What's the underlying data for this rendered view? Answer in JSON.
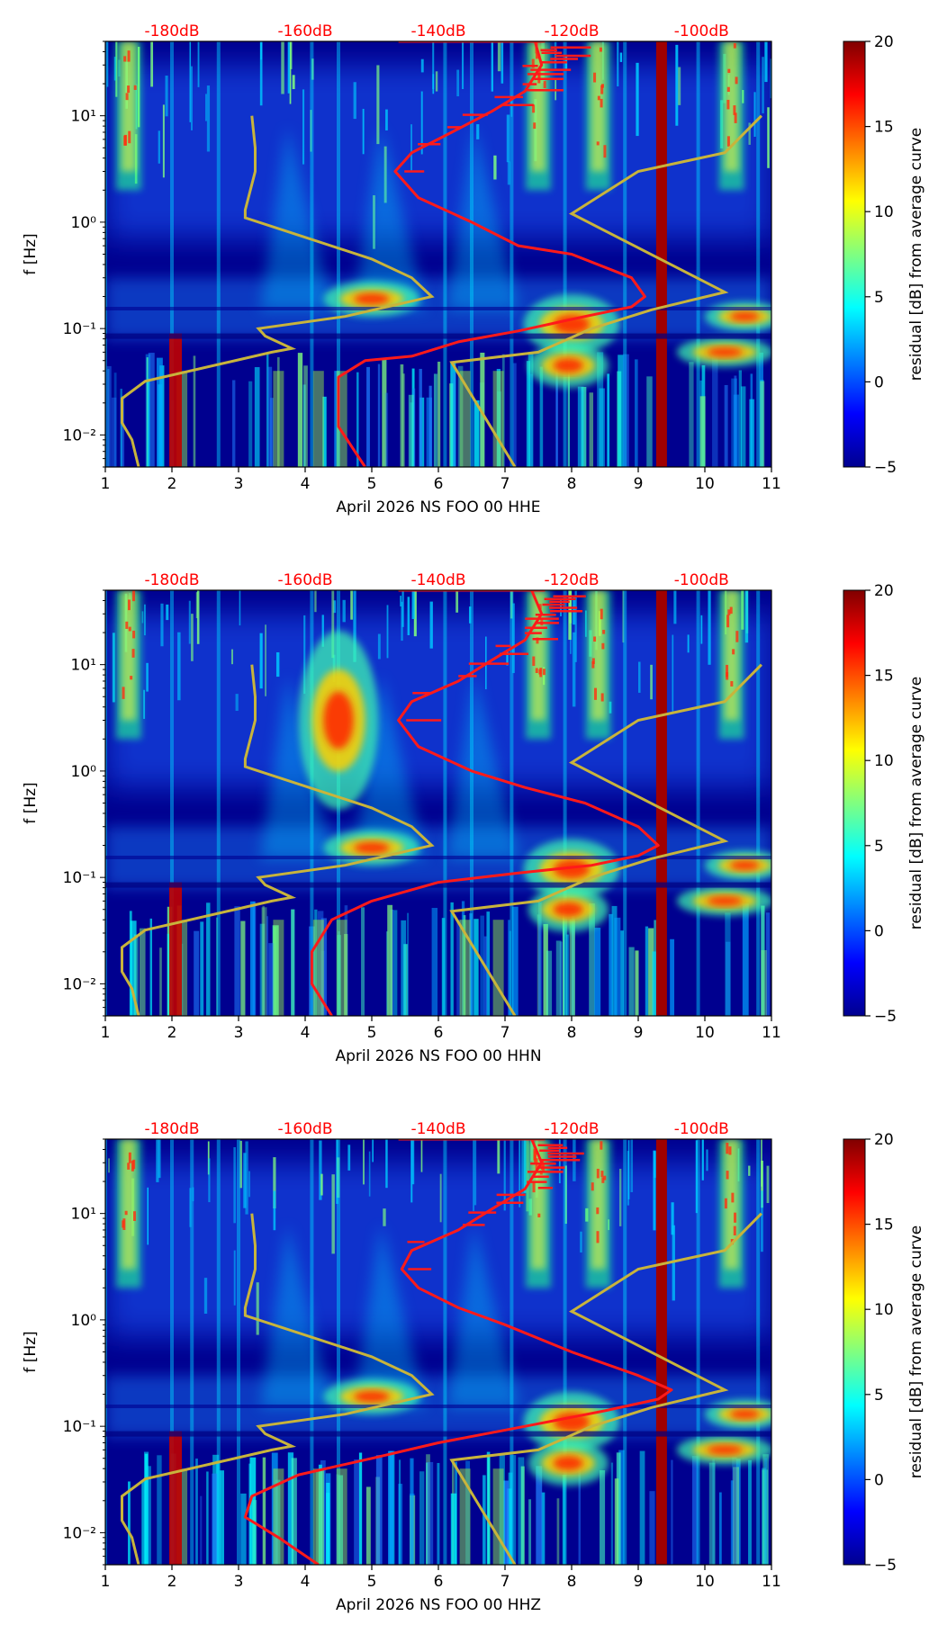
{
  "gradient": {
    "stops": [
      "#00008f",
      "#0000ff",
      "#0080ff",
      "#00ffff",
      "#80ff80",
      "#ffff00",
      "#ff8000",
      "#ff0000",
      "#800000"
    ]
  },
  "colors": {
    "background": "#00008f",
    "psd_curve": "#ff1a1a",
    "noise_model": "#c8b43c",
    "top_label": "#ff0000"
  },
  "chart_data": [
    {
      "type": "heatmap",
      "xlabel": "April 2026 NS FOO 00 HHE",
      "ylabel": "f [Hz]",
      "xlim": [
        1,
        11
      ],
      "ylim": [
        0.005,
        50
      ],
      "y_scale": "log",
      "x_ticks": [
        "1",
        "2",
        "3",
        "4",
        "5",
        "6",
        "7",
        "8",
        "9",
        "10",
        "11"
      ],
      "y_ticks": [
        {
          "value": 10,
          "label": "10¹"
        },
        {
          "value": 1,
          "label": "10⁰"
        },
        {
          "value": 0.1,
          "label": "10⁻¹"
        },
        {
          "value": 0.01,
          "label": "10⁻²"
        }
      ],
      "top_labels": [
        {
          "x": 2.0,
          "label": "-180dB"
        },
        {
          "x": 4.0,
          "label": "-160dB"
        },
        {
          "x": 6.0,
          "label": "-140dB"
        },
        {
          "x": 8.0,
          "label": "-120dB"
        },
        {
          "x": 9.95,
          "label": "-100dB"
        }
      ],
      "colorbar": {
        "label": "residual [dB] from average curve",
        "min": -5,
        "max": 20,
        "ticks": [
          "20",
          "15",
          "10",
          "5",
          "0",
          "−5"
        ]
      },
      "red_curve": [
        [
          4.9,
          0.005
        ],
        [
          4.5,
          0.012
        ],
        [
          4.5,
          0.035
        ],
        [
          4.9,
          0.05
        ],
        [
          5.6,
          0.055
        ],
        [
          6.3,
          0.075
        ],
        [
          7.2,
          0.095
        ],
        [
          8.2,
          0.13
        ],
        [
          8.9,
          0.16
        ],
        [
          9.1,
          0.2
        ],
        [
          8.9,
          0.3
        ],
        [
          8.0,
          0.5
        ],
        [
          7.2,
          0.6
        ],
        [
          6.5,
          1.0
        ],
        [
          5.7,
          1.7
        ],
        [
          5.35,
          3.0
        ],
        [
          5.6,
          4.5
        ],
        [
          6.2,
          7.0
        ],
        [
          6.8,
          11
        ],
        [
          7.3,
          17
        ],
        [
          7.55,
          30
        ],
        [
          7.45,
          50
        ]
      ],
      "noise_model": [
        [
          1.5,
          0.005
        ],
        [
          1.4,
          0.009
        ],
        [
          1.25,
          0.013
        ],
        [
          1.25,
          0.022
        ],
        [
          1.6,
          0.032
        ],
        [
          3.5,
          0.06
        ],
        [
          3.8,
          0.065
        ],
        [
          3.4,
          0.085
        ],
        [
          3.3,
          0.1
        ],
        [
          4.6,
          0.13
        ],
        [
          5.9,
          0.2
        ],
        [
          5.6,
          0.3
        ],
        [
          5.0,
          0.45
        ],
        [
          3.1,
          1.1
        ],
        [
          3.1,
          1.3
        ],
        [
          3.25,
          3.0
        ],
        [
          3.25,
          5.0
        ],
        [
          3.2,
          10.0
        ]
      ],
      "noise_model_high": [
        [
          7.15,
          0.005
        ],
        [
          6.2,
          0.048
        ],
        [
          7.5,
          0.06
        ],
        [
          8.3,
          0.1
        ],
        [
          9.2,
          0.15
        ],
        [
          10.3,
          0.22
        ],
        [
          8.0,
          1.2
        ],
        [
          9.0,
          3.0
        ],
        [
          10.3,
          4.5
        ],
        [
          10.85,
          10.0
        ]
      ],
      "features": {
        "hot_columns": [
          1.35,
          7.5,
          8.4,
          10.4
        ],
        "noise_columns": [
          1.0,
          2.0,
          2.7,
          4.1,
          4.5,
          6.1,
          6.5,
          7.1,
          7.9,
          8.8,
          9.9,
          10.8
        ],
        "red_bar_x": 9.35,
        "red_bar_bottom_x": 2.0,
        "blobs": [
          [
            8.0,
            0.11,
            0.6,
            0.2
          ],
          [
            7.95,
            0.045,
            0.5,
            0.15
          ],
          [
            10.6,
            0.13,
            0.5,
            0.1
          ],
          [
            10.3,
            0.06,
            0.6,
            0.1
          ],
          [
            5.0,
            0.19,
            0.6,
            0.12
          ]
        ]
      }
    },
    {
      "type": "heatmap",
      "xlabel": "April 2026 NS FOO 00 HHN",
      "ylabel": "f [Hz]",
      "xlim": [
        1,
        11
      ],
      "ylim": [
        0.005,
        50
      ],
      "y_scale": "log",
      "x_ticks": [
        "1",
        "2",
        "3",
        "4",
        "5",
        "6",
        "7",
        "8",
        "9",
        "10",
        "11"
      ],
      "y_ticks": [
        {
          "value": 10,
          "label": "10¹"
        },
        {
          "value": 1,
          "label": "10⁰"
        },
        {
          "value": 0.1,
          "label": "10⁻¹"
        },
        {
          "value": 0.01,
          "label": "10⁻²"
        }
      ],
      "top_labels": [
        {
          "x": 2.0,
          "label": "-180dB"
        },
        {
          "x": 4.0,
          "label": "-160dB"
        },
        {
          "x": 6.0,
          "label": "-140dB"
        },
        {
          "x": 8.0,
          "label": "-120dB"
        },
        {
          "x": 9.95,
          "label": "-100dB"
        }
      ],
      "colorbar": {
        "label": "residual [dB] from average curve",
        "min": -5,
        "max": 20,
        "ticks": [
          "20",
          "15",
          "10",
          "5",
          "0",
          "−5"
        ]
      },
      "red_curve": [
        [
          4.4,
          0.005
        ],
        [
          4.1,
          0.01
        ],
        [
          4.1,
          0.02
        ],
        [
          4.4,
          0.04
        ],
        [
          5.0,
          0.06
        ],
        [
          6.0,
          0.09
        ],
        [
          7.2,
          0.11
        ],
        [
          8.3,
          0.13
        ],
        [
          9.0,
          0.16
        ],
        [
          9.3,
          0.2
        ],
        [
          9.0,
          0.3
        ],
        [
          8.2,
          0.5
        ],
        [
          7.3,
          0.7
        ],
        [
          6.5,
          1.0
        ],
        [
          5.7,
          1.7
        ],
        [
          5.4,
          3.0
        ],
        [
          5.6,
          4.5
        ],
        [
          6.3,
          7.0
        ],
        [
          6.8,
          11
        ],
        [
          7.3,
          17
        ],
        [
          7.55,
          30
        ],
        [
          7.4,
          50
        ]
      ],
      "noise_model": [
        [
          1.5,
          0.005
        ],
        [
          1.4,
          0.009
        ],
        [
          1.25,
          0.013
        ],
        [
          1.25,
          0.022
        ],
        [
          1.6,
          0.032
        ],
        [
          3.5,
          0.06
        ],
        [
          3.8,
          0.065
        ],
        [
          3.4,
          0.085
        ],
        [
          3.3,
          0.1
        ],
        [
          4.6,
          0.13
        ],
        [
          5.9,
          0.2
        ],
        [
          5.6,
          0.3
        ],
        [
          5.0,
          0.45
        ],
        [
          3.1,
          1.1
        ],
        [
          3.1,
          1.3
        ],
        [
          3.25,
          3.0
        ],
        [
          3.25,
          5.0
        ],
        [
          3.2,
          10.0
        ]
      ],
      "noise_model_high": [
        [
          7.15,
          0.005
        ],
        [
          6.2,
          0.048
        ],
        [
          7.5,
          0.06
        ],
        [
          8.3,
          0.1
        ],
        [
          9.2,
          0.15
        ],
        [
          10.3,
          0.22
        ],
        [
          8.0,
          1.2
        ],
        [
          9.0,
          3.0
        ],
        [
          10.3,
          4.5
        ],
        [
          10.85,
          10.0
        ]
      ],
      "features": {
        "hot_columns": [
          1.35,
          7.5,
          8.4,
          10.4
        ],
        "noise_columns": [
          1.0,
          2.0,
          2.7,
          4.1,
          4.5,
          6.1,
          6.5,
          7.1,
          7.9,
          8.8,
          9.9,
          10.8
        ],
        "red_bar_x": 9.35,
        "red_bar_bottom_x": 2.0,
        "blobs": [
          [
            8.0,
            0.12,
            0.6,
            0.2
          ],
          [
            7.95,
            0.05,
            0.5,
            0.15
          ],
          [
            10.6,
            0.13,
            0.5,
            0.1
          ],
          [
            10.3,
            0.06,
            0.6,
            0.1
          ],
          [
            5.0,
            0.19,
            0.6,
            0.12
          ],
          [
            4.5,
            3.0,
            0.5,
            0.6
          ]
        ]
      }
    },
    {
      "type": "heatmap",
      "xlabel": "April 2026 NS FOO 00 HHZ",
      "ylabel": "f [Hz]",
      "xlim": [
        1,
        11
      ],
      "ylim": [
        0.005,
        50
      ],
      "y_scale": "log",
      "x_ticks": [
        "1",
        "2",
        "3",
        "4",
        "5",
        "6",
        "7",
        "8",
        "9",
        "10",
        "11"
      ],
      "y_ticks": [
        {
          "value": 10,
          "label": "10¹"
        },
        {
          "value": 1,
          "label": "10⁰"
        },
        {
          "value": 0.1,
          "label": "10⁻¹"
        },
        {
          "value": 0.01,
          "label": "10⁻²"
        }
      ],
      "top_labels": [
        {
          "x": 2.0,
          "label": "-180dB"
        },
        {
          "x": 4.0,
          "label": "-160dB"
        },
        {
          "x": 6.0,
          "label": "-140dB"
        },
        {
          "x": 8.0,
          "label": "-120dB"
        },
        {
          "x": 9.95,
          "label": "-100dB"
        }
      ],
      "colorbar": {
        "label": "residual [dB] from average curve",
        "min": -5,
        "max": 20,
        "ticks": [
          "20",
          "15",
          "10",
          "5",
          "0",
          "−5"
        ]
      },
      "red_curve": [
        [
          4.2,
          0.005
        ],
        [
          3.6,
          0.009
        ],
        [
          3.1,
          0.014
        ],
        [
          3.2,
          0.022
        ],
        [
          3.9,
          0.035
        ],
        [
          5.0,
          0.05
        ],
        [
          6.0,
          0.07
        ],
        [
          7.3,
          0.1
        ],
        [
          8.5,
          0.14
        ],
        [
          9.3,
          0.18
        ],
        [
          9.5,
          0.22
        ],
        [
          9.0,
          0.3
        ],
        [
          8.0,
          0.5
        ],
        [
          7.0,
          0.9
        ],
        [
          6.3,
          1.3
        ],
        [
          5.7,
          2.0
        ],
        [
          5.45,
          3.0
        ],
        [
          5.6,
          4.5
        ],
        [
          6.3,
          7.0
        ],
        [
          6.8,
          11
        ],
        [
          7.3,
          17
        ],
        [
          7.55,
          30
        ],
        [
          7.4,
          50
        ]
      ],
      "noise_model": [
        [
          1.5,
          0.005
        ],
        [
          1.4,
          0.009
        ],
        [
          1.25,
          0.013
        ],
        [
          1.25,
          0.022
        ],
        [
          1.6,
          0.032
        ],
        [
          3.5,
          0.06
        ],
        [
          3.8,
          0.065
        ],
        [
          3.4,
          0.085
        ],
        [
          3.3,
          0.1
        ],
        [
          4.6,
          0.13
        ],
        [
          5.9,
          0.2
        ],
        [
          5.6,
          0.3
        ],
        [
          5.0,
          0.45
        ],
        [
          3.1,
          1.1
        ],
        [
          3.1,
          1.3
        ],
        [
          3.25,
          3.0
        ],
        [
          3.25,
          5.0
        ],
        [
          3.2,
          10.0
        ]
      ],
      "noise_model_high": [
        [
          7.15,
          0.005
        ],
        [
          6.2,
          0.048
        ],
        [
          7.5,
          0.06
        ],
        [
          8.3,
          0.1
        ],
        [
          9.2,
          0.15
        ],
        [
          10.3,
          0.22
        ],
        [
          8.0,
          1.2
        ],
        [
          9.0,
          3.0
        ],
        [
          10.3,
          4.5
        ],
        [
          10.85,
          10.0
        ]
      ],
      "features": {
        "hot_columns": [
          1.35,
          7.5,
          8.4,
          10.4
        ],
        "noise_columns": [
          1.0,
          2.0,
          2.3,
          2.7,
          3.0,
          4.1,
          4.5,
          6.1,
          7.1,
          7.9,
          8.8,
          9.9,
          10.8
        ],
        "red_bar_x": 9.35,
        "red_bar_bottom_x": 2.0,
        "blobs": [
          [
            8.0,
            0.11,
            0.6,
            0.2
          ],
          [
            7.95,
            0.045,
            0.5,
            0.15
          ],
          [
            10.6,
            0.13,
            0.5,
            0.1
          ],
          [
            10.3,
            0.06,
            0.6,
            0.1
          ],
          [
            5.0,
            0.19,
            0.6,
            0.12
          ]
        ]
      }
    }
  ]
}
